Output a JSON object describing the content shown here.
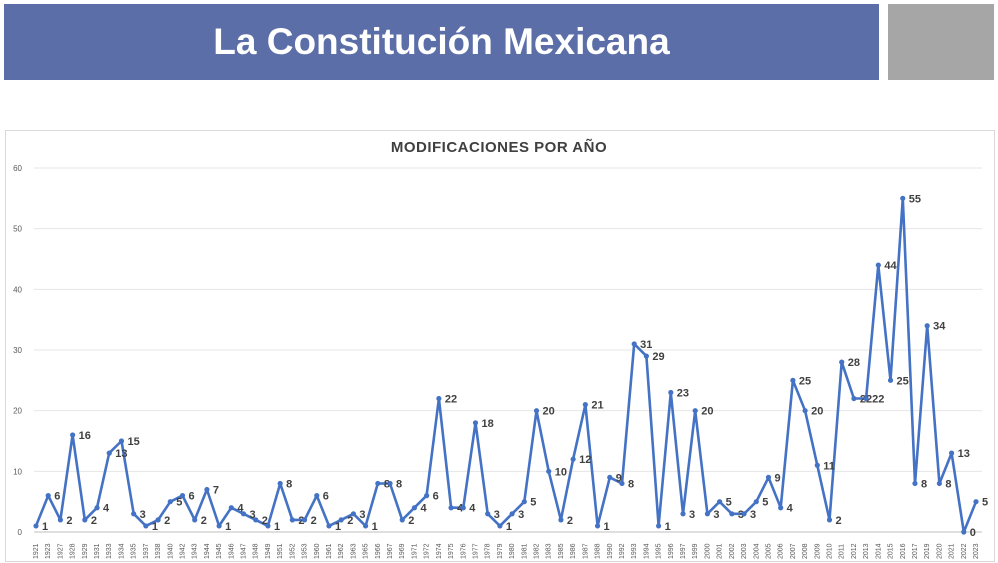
{
  "banner": {
    "title": "La Constitución Mexicana"
  },
  "colors": {
    "banner": "#5b6ea8",
    "gray_box": "#a6a6a6",
    "series": "#4472c4"
  },
  "chart_data": {
    "type": "line",
    "title": "MODIFICACIONES POR AÑO",
    "xlabel": "",
    "ylabel": "",
    "ylim": [
      0,
      60
    ],
    "yticks": [
      0,
      10,
      20,
      30,
      40,
      50,
      60
    ],
    "grid": true,
    "categories": [
      "1921",
      "1923",
      "1927",
      "1928",
      "1929",
      "1931",
      "1933",
      "1934",
      "1935",
      "1937",
      "1938",
      "1940",
      "1942",
      "1943",
      "1944",
      "1945",
      "1946",
      "1947",
      "1948",
      "1949",
      "1951",
      "1952",
      "1953",
      "1960",
      "1961",
      "1962",
      "1963",
      "1965",
      "1966",
      "1967",
      "1969",
      "1971",
      "1972",
      "1974",
      "1975",
      "1976",
      "1977",
      "1978",
      "1979",
      "1980",
      "1981",
      "1982",
      "1983",
      "1985",
      "1986",
      "1987",
      "1988",
      "1990",
      "1992",
      "1993",
      "1994",
      "1995",
      "1996",
      "1997",
      "1999",
      "2000",
      "2001",
      "2002",
      "2003",
      "2004",
      "2005",
      "2006",
      "2007",
      "2008",
      "2009",
      "2010",
      "2011",
      "2012",
      "2013",
      "2014",
      "2015",
      "2016",
      "2017",
      "2019",
      "2020",
      "2021",
      "2022",
      "2023"
    ],
    "series": [
      {
        "values": [
          1,
          6,
          2,
          16,
          2,
          4,
          13,
          15,
          3,
          1,
          2,
          5,
          6,
          2,
          7,
          1,
          4,
          3,
          2,
          1,
          8,
          2,
          2,
          6,
          1,
          2,
          3,
          1,
          8,
          8,
          2,
          4,
          6,
          22,
          4,
          4,
          18,
          3,
          1,
          3,
          5,
          20,
          10,
          2,
          12,
          21,
          1,
          9,
          8,
          31,
          29,
          1,
          23,
          3,
          20,
          3,
          5,
          3,
          3,
          5,
          9,
          4,
          25,
          20,
          11,
          2,
          28,
          22,
          22,
          44,
          25,
          55,
          8,
          34,
          8,
          13,
          0,
          5
        ]
      }
    ]
  }
}
